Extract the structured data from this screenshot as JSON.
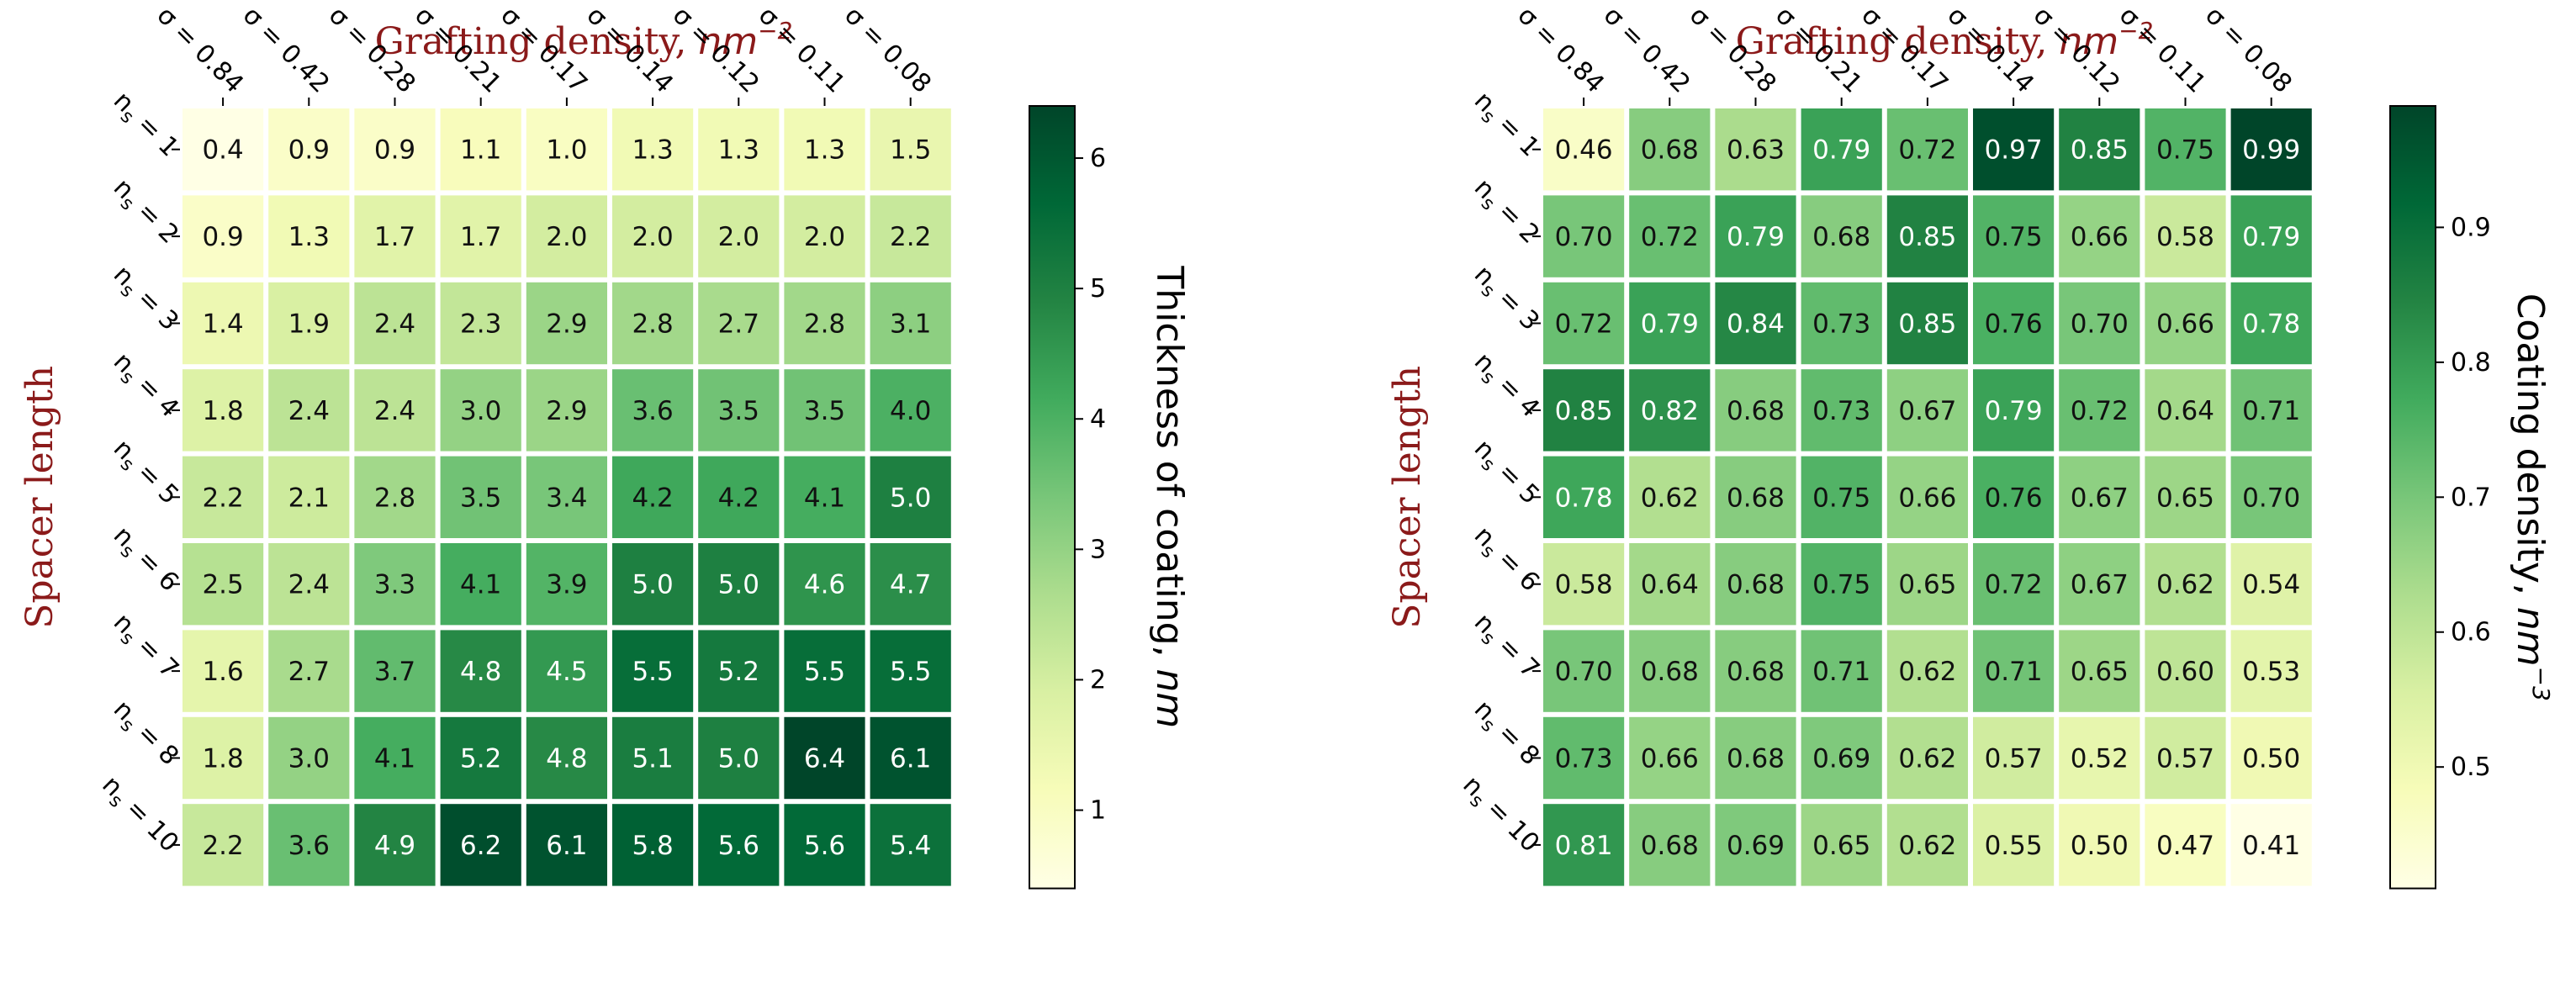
{
  "charts": [
    {
      "type": "heatmap",
      "title": "Grafting density, nm−2",
      "ylabel": "Spacer length",
      "xlabels": [
        "σ = 0.84",
        "σ = 0.42",
        "σ = 0.28",
        "σ = 0.21",
        "σ = 0.17",
        "σ = 0.14",
        "σ = 0.12",
        "σ = 0.11",
        "σ = 0.08"
      ],
      "ylabels": [
        "ns = 1",
        "ns = 2",
        "ns = 3",
        "ns = 4",
        "ns = 5",
        "ns = 6",
        "ns = 7",
        "ns = 8",
        "ns = 10"
      ],
      "colorbar_label": "Thickness of coating, nm",
      "colorbar_range": [
        0.4,
        6.4
      ],
      "colorbar_ticks": [
        1,
        2,
        3,
        4,
        5,
        6
      ],
      "colormap": [
        "#ffffe5",
        "#f7fcb9",
        "#d9f0a3",
        "#addd8e",
        "#78c679",
        "#41ab5d",
        "#238443",
        "#006837",
        "#004529"
      ],
      "decimals": 1,
      "values": [
        [
          0.4,
          0.9,
          0.9,
          1.1,
          1.0,
          1.3,
          1.3,
          1.3,
          1.5
        ],
        [
          0.9,
          1.3,
          1.7,
          1.7,
          2.0,
          2.0,
          2.0,
          2.0,
          2.2
        ],
        [
          1.4,
          1.9,
          2.4,
          2.3,
          2.9,
          2.8,
          2.7,
          2.8,
          3.1
        ],
        [
          1.8,
          2.4,
          2.4,
          3.0,
          2.9,
          3.6,
          3.5,
          3.5,
          4.0
        ],
        [
          2.2,
          2.1,
          2.8,
          3.5,
          3.4,
          4.2,
          4.2,
          4.1,
          5.0
        ],
        [
          2.5,
          2.4,
          3.3,
          4.1,
          3.9,
          5.0,
          5.0,
          4.6,
          4.7
        ],
        [
          1.6,
          2.7,
          3.7,
          4.8,
          4.5,
          5.5,
          5.2,
          5.5,
          5.5
        ],
        [
          1.8,
          3.0,
          4.1,
          5.2,
          4.8,
          5.1,
          5.0,
          6.4,
          6.1
        ],
        [
          2.2,
          3.6,
          4.9,
          6.2,
          6.1,
          5.8,
          5.6,
          5.6,
          5.4
        ]
      ]
    },
    {
      "type": "heatmap",
      "title": "Grafting density, nm−2",
      "ylabel": "Spacer length",
      "xlabels": [
        "σ = 0.84",
        "σ = 0.42",
        "σ = 0.28",
        "σ = 0.21",
        "σ = 0.17",
        "σ = 0.14",
        "σ = 0.12",
        "σ = 0.11",
        "σ = 0.08"
      ],
      "ylabels": [
        "ns = 1",
        "ns = 2",
        "ns = 3",
        "ns = 4",
        "ns = 5",
        "ns = 6",
        "ns = 7",
        "ns = 8",
        "ns = 10"
      ],
      "colorbar_label": "Coating density, nm−3",
      "colorbar_range": [
        0.41,
        0.99
      ],
      "colorbar_ticks": [
        0.5,
        0.6,
        0.7,
        0.8,
        0.9
      ],
      "colormap": [
        "#ffffe5",
        "#f7fcb9",
        "#d9f0a3",
        "#addd8e",
        "#78c679",
        "#41ab5d",
        "#238443",
        "#006837",
        "#004529"
      ],
      "decimals": 2,
      "values": [
        [
          0.46,
          0.68,
          0.63,
          0.79,
          0.72,
          0.97,
          0.85,
          0.75,
          0.99
        ],
        [
          0.7,
          0.72,
          0.79,
          0.68,
          0.85,
          0.75,
          0.66,
          0.58,
          0.79
        ],
        [
          0.72,
          0.79,
          0.84,
          0.73,
          0.85,
          0.76,
          0.7,
          0.66,
          0.78
        ],
        [
          0.85,
          0.82,
          0.68,
          0.73,
          0.67,
          0.79,
          0.72,
          0.64,
          0.71
        ],
        [
          0.78,
          0.62,
          0.68,
          0.75,
          0.66,
          0.76,
          0.67,
          0.65,
          0.7
        ],
        [
          0.58,
          0.64,
          0.68,
          0.75,
          0.65,
          0.72,
          0.67,
          0.62,
          0.54
        ],
        [
          0.7,
          0.68,
          0.68,
          0.71,
          0.62,
          0.71,
          0.65,
          0.6,
          0.53
        ],
        [
          0.73,
          0.66,
          0.68,
          0.69,
          0.62,
          0.57,
          0.52,
          0.57,
          0.5
        ],
        [
          0.81,
          0.68,
          0.69,
          0.65,
          0.62,
          0.55,
          0.5,
          0.47,
          0.41
        ]
      ]
    }
  ],
  "chart_data": [
    {
      "type": "heatmap",
      "title": "Grafting density, nm−2",
      "xlabel": "",
      "ylabel": "Spacer length",
      "x": [
        "σ = 0.84",
        "σ = 0.42",
        "σ = 0.28",
        "σ = 0.21",
        "σ = 0.17",
        "σ = 0.14",
        "σ = 0.12",
        "σ = 0.11",
        "σ = 0.08"
      ],
      "y": [
        "ns = 1",
        "ns = 2",
        "ns = 3",
        "ns = 4",
        "ns = 5",
        "ns = 6",
        "ns = 7",
        "ns = 8",
        "ns = 10"
      ],
      "colorbar": "Thickness of coating, nm"
    },
    {
      "type": "heatmap",
      "title": "Grafting density, nm−2",
      "xlabel": "",
      "ylabel": "Spacer length",
      "x": [
        "σ = 0.84",
        "σ = 0.42",
        "σ = 0.28",
        "σ = 0.21",
        "σ = 0.17",
        "σ = 0.14",
        "σ = 0.12",
        "σ = 0.11",
        "σ = 0.08"
      ],
      "y": [
        "ns = 1",
        "ns = 2",
        "ns = 3",
        "ns = 4",
        "ns = 5",
        "ns = 6",
        "ns = 7",
        "ns = 8",
        "ns = 10"
      ],
      "colorbar": "Coating density, nm−3"
    }
  ]
}
